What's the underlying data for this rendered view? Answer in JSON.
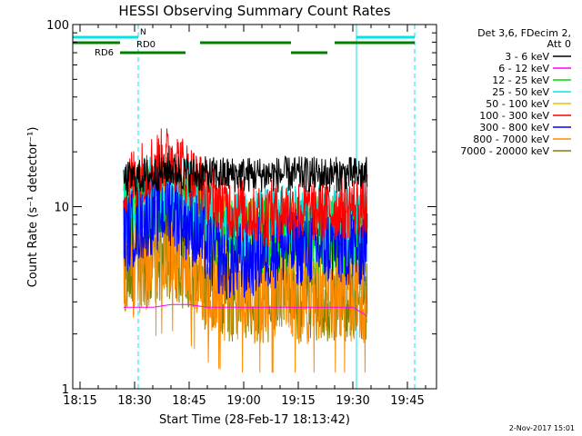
{
  "chart_data": {
    "type": "line",
    "title": "HESSI Observing Summary Count Rates",
    "xlabel": "Start Time (28-Feb-17 18:13:42)",
    "ylabel": "Count Rate (s⁻¹ detector⁻¹)",
    "x_units": "minutes",
    "xlim": [
      "18:13",
      "19:53"
    ],
    "ylim": [
      1,
      100
    ],
    "y_scale": "log",
    "grid": false,
    "x_ticks": [
      "18:15",
      "18:30",
      "18:45",
      "19:00",
      "19:15",
      "19:30",
      "19:45"
    ],
    "y_ticks": [
      "1",
      "10",
      "100"
    ],
    "legend_title": [
      "Det 3,6, FDecim 2,",
      "Att 0"
    ],
    "legend_position": "top-right-outside",
    "footer_date": "2-Nov-2017 15:01",
    "series": [
      {
        "name": "3 - 6 keV",
        "color": "#000000",
        "x": [
          "18:27",
          "18:35",
          "18:40",
          "18:45",
          "18:50",
          "18:55",
          "19:00",
          "19:05",
          "19:10",
          "19:15",
          "19:20",
          "19:25",
          "19:30",
          "19:34"
        ],
        "y": [
          14,
          15,
          16,
          15,
          15,
          15,
          15,
          15,
          15,
          15,
          15,
          15,
          15,
          15
        ]
      },
      {
        "name": "6 - 12 keV",
        "color": "#ff00ff",
        "x": [
          "18:27",
          "18:35",
          "18:40",
          "18:45",
          "18:50",
          "18:55",
          "19:00",
          "19:05",
          "19:10",
          "19:15",
          "19:20",
          "19:25",
          "19:30",
          "19:34"
        ],
        "y": [
          2.8,
          2.8,
          2.9,
          2.9,
          2.8,
          2.8,
          2.8,
          2.8,
          2.8,
          2.8,
          2.8,
          2.8,
          2.8,
          2.5
        ]
      },
      {
        "name": "12 - 25 keV",
        "color": "#00dd00",
        "x": [
          "18:27",
          "18:35",
          "18:40",
          "18:45",
          "18:50",
          "18:55",
          "19:00",
          "19:05",
          "19:10",
          "19:15",
          "19:20",
          "19:25",
          "19:30",
          "19:34"
        ],
        "y": [
          9,
          11,
          12,
          10,
          8,
          7,
          7,
          7,
          7,
          7,
          7,
          7,
          7,
          7
        ]
      },
      {
        "name": "25 - 50 keV",
        "color": "#00e5e5",
        "x": [
          "18:27",
          "18:35",
          "18:40",
          "18:45",
          "18:50",
          "18:55",
          "19:00",
          "19:05",
          "19:10",
          "19:15",
          "19:20",
          "19:25",
          "19:30",
          "19:34"
        ],
        "y": [
          10,
          12,
          13,
          11,
          9,
          8,
          8,
          8,
          8,
          8,
          8,
          8,
          8,
          8
        ]
      },
      {
        "name": "50 - 100 keV",
        "color": "#e6c200",
        "x": [
          "18:27",
          "18:35",
          "18:40",
          "18:45",
          "18:50",
          "18:55",
          "19:00",
          "19:05",
          "19:10",
          "19:15",
          "19:20",
          "19:25",
          "19:30",
          "19:34"
        ],
        "y": [
          9,
          11,
          12,
          10,
          8,
          7,
          7,
          7,
          7,
          7,
          7,
          7,
          7,
          7
        ]
      },
      {
        "name": "100 - 300 keV",
        "color": "#ff0000",
        "x": [
          "18:27",
          "18:35",
          "18:40",
          "18:45",
          "18:50",
          "18:55",
          "19:00",
          "19:05",
          "19:10",
          "19:15",
          "19:20",
          "19:25",
          "19:30",
          "19:34"
        ],
        "y": [
          13,
          17,
          19,
          15,
          12,
          10,
          9.5,
          9,
          9.5,
          9.5,
          9.5,
          9.5,
          10,
          10
        ]
      },
      {
        "name": "300 - 800 keV",
        "color": "#0000ff",
        "x": [
          "18:27",
          "18:35",
          "18:40",
          "18:45",
          "18:50",
          "18:55",
          "19:00",
          "19:05",
          "19:10",
          "19:15",
          "19:20",
          "19:25",
          "19:30",
          "19:34"
        ],
        "y": [
          7,
          9,
          10,
          8,
          6,
          5,
          5,
          5.5,
          6,
          6,
          6,
          6,
          6,
          6
        ]
      },
      {
        "name": "800 - 7000 keV",
        "color": "#ff8c00",
        "x": [
          "18:27",
          "18:35",
          "18:40",
          "18:45",
          "18:50",
          "18:55",
          "19:00",
          "19:05",
          "19:10",
          "19:15",
          "19:20",
          "19:25",
          "19:30",
          "19:34"
        ],
        "y": [
          4.5,
          5.5,
          6,
          5,
          4,
          3.5,
          3.5,
          3.5,
          3.5,
          3.5,
          3.5,
          3.5,
          3.5,
          3.5
        ]
      },
      {
        "name": "7000 - 20000 keV",
        "color": "#808000",
        "x": [
          "18:27",
          "18:35",
          "18:40",
          "18:45",
          "18:50",
          "18:55",
          "19:00",
          "19:05",
          "19:10",
          "19:15",
          "19:20",
          "19:25",
          "19:30",
          "19:34"
        ],
        "y": [
          4.5,
          5,
          5.5,
          4.5,
          3.5,
          3.2,
          3.2,
          3.2,
          3.2,
          3.2,
          3.2,
          3.2,
          3.2,
          3.2
        ]
      }
    ],
    "flags": [
      {
        "name": "N",
        "color": "#00e5e5",
        "segments": [
          [
            "18:13",
            "18:31"
          ],
          [
            "19:31",
            "19:47"
          ]
        ]
      },
      {
        "name": "RD0",
        "color": "#008000",
        "segments": [
          [
            "18:13",
            "18:26"
          ],
          [
            "18:48",
            "19:13"
          ],
          [
            "19:25",
            "19:47"
          ]
        ]
      },
      {
        "name": "RD6",
        "color": "#008000",
        "segments": [
          [
            "18:26",
            "18:44"
          ],
          [
            "19:13",
            "19:23"
          ]
        ]
      }
    ],
    "vertical_markers": [
      {
        "x": "18:13",
        "style": "solid",
        "color": "#00e5e5"
      },
      {
        "x": "18:31",
        "style": "dashed",
        "color": "#00e5e5"
      },
      {
        "x": "19:31",
        "style": "solid",
        "color": "#00e5e5"
      },
      {
        "x": "19:47",
        "style": "dashed",
        "color": "#00e5e5"
      }
    ]
  }
}
